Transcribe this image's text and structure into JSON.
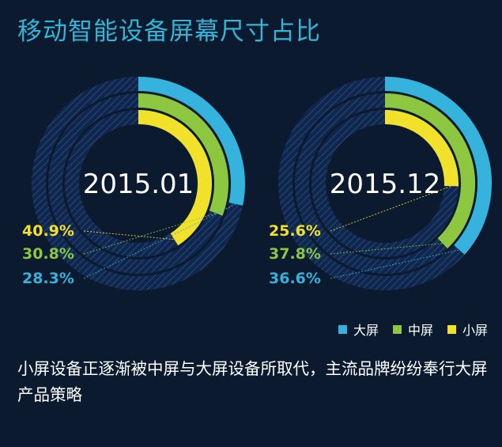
{
  "title": "移动智能设备屏幕尺寸占比",
  "caption": "小屏设备正逐渐被中屏与大屏设备所取代，主流品牌纷纷奉行大屏产品策略",
  "colors": {
    "background": "#0b1a2e",
    "title": "#34b5d6",
    "track": "#1e3c6e",
    "大屏": "#35b3dc",
    "中屏": "#8dc63f",
    "小屏": "#f2e12b"
  },
  "chart_data": {
    "type": "radial-bar",
    "unit": "%",
    "series_order": [
      "大屏",
      "中屏",
      "小屏"
    ],
    "charts": [
      {
        "label": "2015.01",
        "values": {
          "大屏": 28.3,
          "中屏": 30.8,
          "小屏": 40.9
        },
        "value_labels": [
          "40.9%",
          "30.8%",
          "28.3%"
        ]
      },
      {
        "label": "2015.12",
        "values": {
          "大屏": 36.6,
          "中屏": 37.8,
          "小屏": 25.6
        },
        "value_labels": [
          "25.6%",
          "37.8%",
          "36.6%"
        ]
      }
    ],
    "legend": {
      "placement": "bottom-right",
      "entries": [
        "大屏",
        "中屏",
        "小屏"
      ]
    }
  }
}
